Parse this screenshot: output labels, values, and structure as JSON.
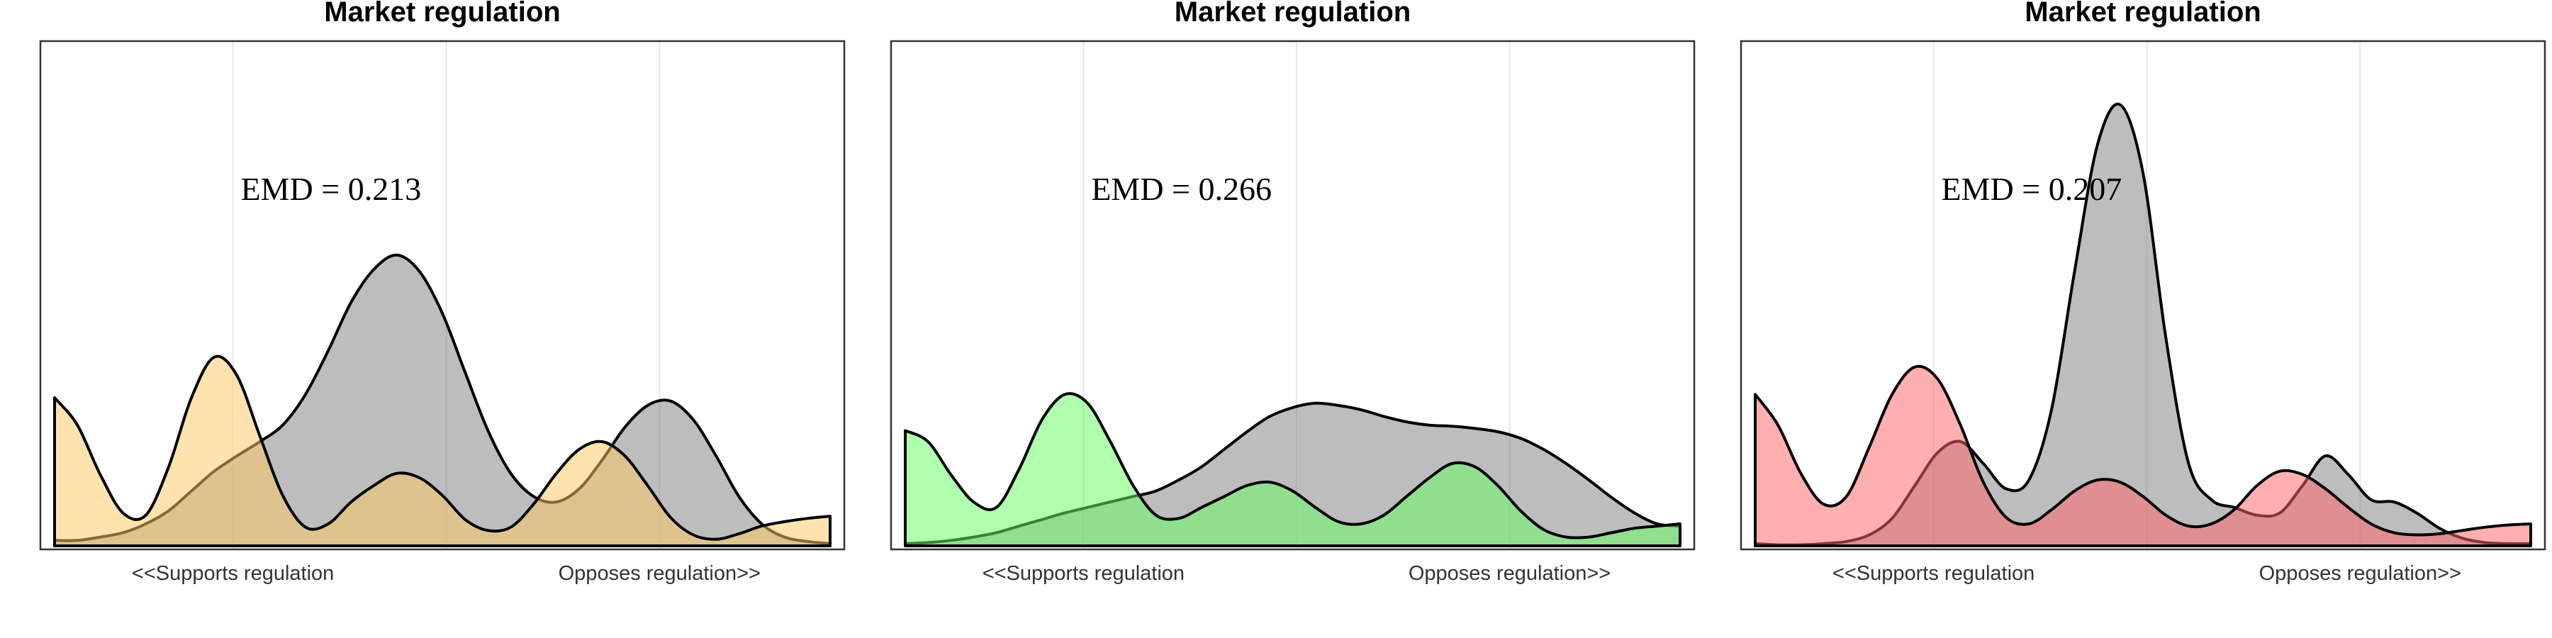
{
  "chart_data": [
    {
      "type": "area",
      "title": "Market regulation",
      "x_tick_labels": [
        "<<Supports regulation",
        "Opposes regulation>>"
      ],
      "x_tick_positions": [
        0.23,
        0.78
      ],
      "xlim": [
        0,
        1
      ],
      "ylim": [
        0,
        4.6
      ],
      "annotation": "EMD = 0.213",
      "series": [
        {
          "color": "#808080",
          "values": [
            0.05,
            0.05,
            0.08,
            0.12,
            0.2,
            0.32,
            0.5,
            0.68,
            0.82,
            0.95,
            1.1,
            1.38,
            1.78,
            2.22,
            2.52,
            2.65,
            2.5,
            2.12,
            1.58,
            1.05,
            0.66,
            0.45,
            0.4,
            0.52,
            0.78,
            1.08,
            1.28,
            1.32,
            1.15,
            0.82,
            0.45,
            0.2,
            0.08,
            0.04,
            0.02
          ]
        },
        {
          "color": "#FFC966",
          "values": [
            1.35,
            1.1,
            0.65,
            0.3,
            0.28,
            0.72,
            1.35,
            1.72,
            1.55,
            1.0,
            0.46,
            0.17,
            0.2,
            0.4,
            0.55,
            0.66,
            0.62,
            0.46,
            0.24,
            0.14,
            0.17,
            0.38,
            0.66,
            0.88,
            0.95,
            0.82,
            0.55,
            0.26,
            0.1,
            0.06,
            0.11,
            0.18,
            0.22,
            0.25,
            0.27
          ]
        }
      ]
    },
    {
      "type": "area",
      "title": "Market regulation",
      "x_tick_labels": [
        "<<Supports regulation",
        "Opposes regulation>>"
      ],
      "x_tick_positions": [
        0.23,
        0.78
      ],
      "xlim": [
        0,
        1
      ],
      "ylim": [
        0,
        4.6
      ],
      "annotation": "EMD = 0.266",
      "series": [
        {
          "color": "#808080",
          "values": [
            0.02,
            0.03,
            0.05,
            0.08,
            0.12,
            0.18,
            0.24,
            0.3,
            0.35,
            0.4,
            0.45,
            0.5,
            0.6,
            0.72,
            0.88,
            1.04,
            1.18,
            1.26,
            1.3,
            1.28,
            1.24,
            1.18,
            1.13,
            1.1,
            1.09,
            1.07,
            1.04,
            0.98,
            0.88,
            0.75,
            0.6,
            0.44,
            0.3,
            0.2,
            0.18
          ]
        },
        {
          "color": "#66FF66",
          "values": [
            1.05,
            0.95,
            0.65,
            0.4,
            0.35,
            0.7,
            1.15,
            1.38,
            1.3,
            0.95,
            0.55,
            0.28,
            0.25,
            0.35,
            0.45,
            0.55,
            0.58,
            0.5,
            0.35,
            0.22,
            0.2,
            0.28,
            0.45,
            0.62,
            0.75,
            0.72,
            0.55,
            0.32,
            0.15,
            0.08,
            0.08,
            0.12,
            0.16,
            0.18,
            0.2
          ]
        }
      ]
    },
    {
      "type": "area",
      "title": "Market regulation",
      "x_tick_labels": [
        "<<Supports regulation",
        "Opposes regulation>>"
      ],
      "x_tick_positions": [
        0.23,
        0.78
      ],
      "xlim": [
        0,
        1
      ],
      "ylim": [
        0,
        4.6
      ],
      "annotation": "EMD = 0.207",
      "series": [
        {
          "color": "#808080",
          "values": [
            0.02,
            0.01,
            0.01,
            0.02,
            0.04,
            0.1,
            0.25,
            0.55,
            0.85,
            0.95,
            0.75,
            0.52,
            0.6,
            1.25,
            2.5,
            3.65,
            4.02,
            3.4,
            1.9,
            0.75,
            0.42,
            0.35,
            0.28,
            0.3,
            0.55,
            0.82,
            0.65,
            0.42,
            0.4,
            0.3,
            0.16,
            0.07,
            0.03,
            0.02,
            0.02
          ]
        },
        {
          "color": "#FF6666",
          "values": [
            1.38,
            1.1,
            0.66,
            0.38,
            0.45,
            0.9,
            1.38,
            1.63,
            1.52,
            1.1,
            0.58,
            0.26,
            0.2,
            0.33,
            0.5,
            0.6,
            0.58,
            0.45,
            0.28,
            0.18,
            0.2,
            0.33,
            0.55,
            0.68,
            0.65,
            0.52,
            0.35,
            0.2,
            0.12,
            0.1,
            0.11,
            0.14,
            0.17,
            0.19,
            0.2
          ]
        }
      ]
    }
  ]
}
